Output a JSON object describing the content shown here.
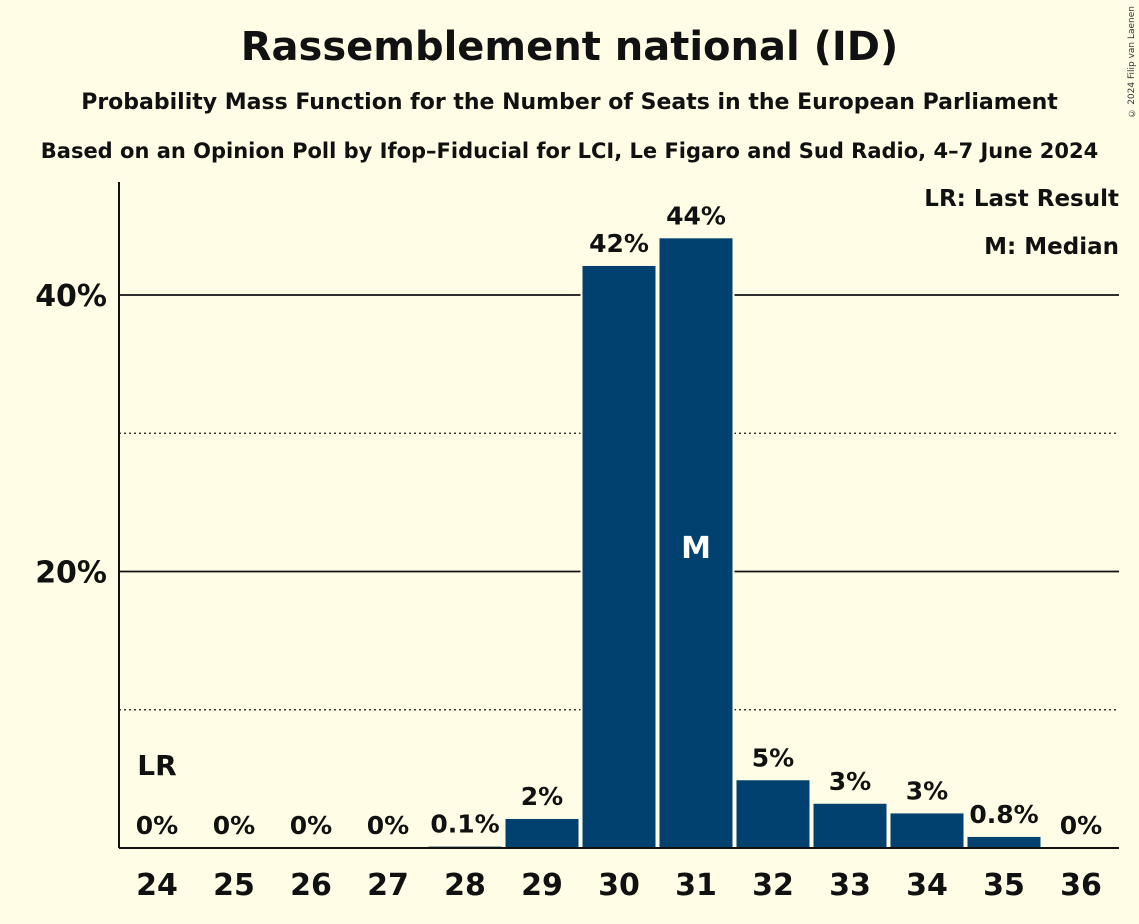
{
  "colors": {
    "background": "#fffde6",
    "bar": "#004170",
    "text": "#111111"
  },
  "copyright": "© 2024 Filip van Laenen",
  "chart_data": {
    "type": "bar",
    "title": "Rassemblement national (ID)",
    "subtitle": "Probability Mass Function for the Number of Seats in the European Parliament",
    "subtitle2": "Based on an Opinion Poll by Ifop–Fiducial for LCI, Le Figaro and Sud Radio, 4–7 June 2024",
    "categories": [
      "24",
      "25",
      "26",
      "27",
      "28",
      "29",
      "30",
      "31",
      "32",
      "33",
      "34",
      "35",
      "36"
    ],
    "values": [
      0,
      0,
      0,
      0,
      0.1,
      2.1,
      42.1,
      44.1,
      4.9,
      3.2,
      2.5,
      0.8,
      0
    ],
    "data_labels": [
      "0%",
      "0%",
      "0%",
      "0%",
      "0.1%",
      "2%",
      "42%",
      "44%",
      "5%",
      "3%",
      "3%",
      "0.8%",
      "0%"
    ],
    "ylim": [
      0,
      48
    ],
    "y_ticks": [
      {
        "value": 20,
        "label": "20%"
      },
      {
        "value": 40,
        "label": "40%"
      }
    ],
    "minor_gridlines": [
      10,
      30
    ],
    "last_result": {
      "category": "24",
      "label": "LR"
    },
    "median": {
      "category": "31",
      "label": "M"
    },
    "legend": {
      "position": "top-right",
      "items": [
        "LR: Last Result",
        "M: Median"
      ]
    }
  }
}
